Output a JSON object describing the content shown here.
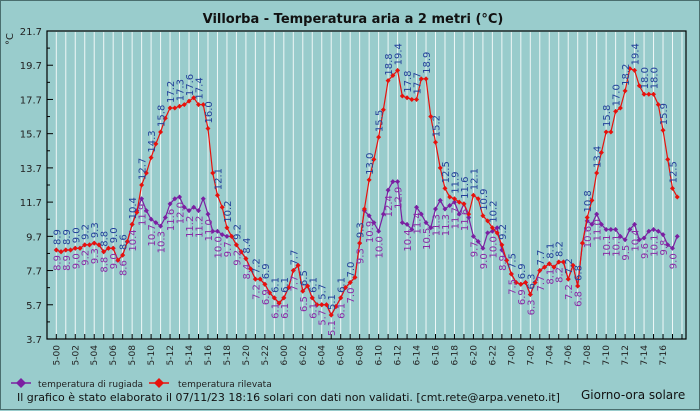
{
  "chart_data": {
    "type": "line",
    "title": "Villorba - Temperatura aria a 2 metri (°C)",
    "ylabel": "°C",
    "xlabel": "Giorno-ora solare",
    "ylim": [
      3.7,
      21.7
    ],
    "yticks": [
      "3.7",
      "5.7",
      "7.7",
      "9.7",
      "11.7",
      "13.7",
      "15.7",
      "17.7",
      "19.7",
      "21.7"
    ],
    "x_step_hours": 0.5,
    "x_start": "5-00",
    "xtick_labels": [
      "5-00",
      "5-02",
      "5-04",
      "5-06",
      "5-08",
      "5-10",
      "5-12",
      "5-14",
      "5-16",
      "5-18",
      "5-20",
      "5-22",
      "6-00",
      "6-02",
      "6-04",
      "6-06",
      "6-08",
      "6-10",
      "6-12",
      "6-14",
      "6-16",
      "6-18",
      "6-20",
      "6-22",
      "7-00",
      "7-02",
      "7-04",
      "7-06",
      "7-08",
      "7-10",
      "7-12",
      "7-14",
      "7-16"
    ],
    "grid": "vertical hourly",
    "legend_position": "bottom-left",
    "series": [
      {
        "name": "temperatura di rugiada",
        "color": "#7b1fa2",
        "label_color": "#8a2aa6",
        "values": [
          8.9,
          8.8,
          8.9,
          8.9,
          9.0,
          9.0,
          9.2,
          9.2,
          9.3,
          9.2,
          8.8,
          9.0,
          9.0,
          8.3,
          8.6,
          9.4,
          10.4,
          11.2,
          11.9,
          11.2,
          10.7,
          10.5,
          10.3,
          10.8,
          11.6,
          11.9,
          12.0,
          11.4,
          11.2,
          11.4,
          11.2,
          11.9,
          11.0,
          10.0,
          10.0,
          9.8,
          9.7,
          9.7,
          9.2,
          8.8,
          8.4,
          7.8,
          7.2,
          7.2,
          6.9,
          6.4,
          6.1,
          5.8,
          6.1,
          6.7,
          7.7,
          8.0,
          6.5,
          6.8,
          6.1,
          5.7,
          5.7,
          5.7,
          5.1,
          5.6,
          6.1,
          6.7,
          7.0,
          7.3,
          9.3,
          11.2,
          10.9,
          10.5,
          10.0,
          11.0,
          12.4,
          12.9,
          12.9,
          10.5,
          10.4,
          10.1,
          11.4,
          11.0,
          10.5,
          10.2,
          11.3,
          11.8,
          11.3,
          11.5,
          11.7,
          11.0,
          11.6,
          10.8,
          9.7,
          9.4,
          9.0,
          9.9,
          10.0,
          10.2,
          8.9,
          8.3,
          7.5,
          7.0,
          6.9,
          7.0,
          6.3,
          7.0,
          7.7,
          7.9,
          8.1,
          7.9,
          8.2,
          8.2,
          7.2,
          8.0,
          6.8,
          9.3,
          10.6,
          10.4,
          11.0,
          10.4,
          10.1,
          10.1,
          10.1,
          9.7,
          9.5,
          10.1,
          10.4,
          9.5,
          9.6,
          10.0,
          10.1,
          10.0,
          9.8,
          9.2,
          9.0,
          9.7
        ]
      },
      {
        "name": "temperatura rilevata",
        "color": "#e8120c",
        "label_color": "#24419a",
        "values": [
          8.9,
          8.8,
          8.9,
          8.9,
          9.0,
          9.0,
          9.2,
          9.2,
          9.3,
          9.2,
          8.8,
          9.0,
          9.0,
          8.3,
          8.6,
          9.4,
          10.4,
          11.1,
          12.7,
          13.4,
          14.3,
          15.1,
          15.8,
          16.6,
          17.2,
          17.2,
          17.3,
          17.4,
          17.6,
          17.8,
          17.4,
          17.4,
          16.0,
          13.4,
          12.1,
          11.4,
          10.2,
          9.7,
          9.2,
          8.8,
          8.4,
          7.8,
          7.2,
          7.2,
          6.9,
          6.4,
          6.1,
          5.8,
          6.1,
          6.7,
          7.7,
          8.0,
          6.5,
          6.8,
          6.1,
          5.7,
          5.7,
          5.7,
          5.1,
          5.6,
          6.1,
          6.7,
          7.0,
          7.3,
          9.3,
          11.3,
          13.0,
          14.2,
          15.5,
          17.1,
          18.8,
          19.1,
          19.4,
          17.9,
          17.8,
          17.7,
          17.7,
          18.9,
          18.9,
          16.7,
          15.2,
          13.7,
          12.5,
          12.0,
          11.9,
          11.7,
          11.6,
          11.0,
          12.1,
          11.9,
          10.9,
          10.6,
          10.2,
          9.9,
          9.2,
          8.3,
          7.5,
          7.0,
          6.9,
          7.0,
          6.3,
          7.0,
          7.7,
          7.9,
          8.1,
          7.9,
          8.2,
          8.2,
          7.2,
          8.0,
          6.8,
          9.3,
          10.8,
          11.8,
          13.4,
          14.6,
          15.8,
          15.8,
          17.0,
          17.2,
          18.2,
          19.5,
          19.4,
          18.5,
          18.0,
          18.0,
          18.0,
          17.4,
          15.9,
          14.2,
          12.5,
          12.0
        ]
      }
    ]
  },
  "footer": {
    "note": "Il grafico è stato elaborato il 07/11/23 18:16 solari con dati non validati. [cmt.rete@arpa.veneto.it]"
  }
}
